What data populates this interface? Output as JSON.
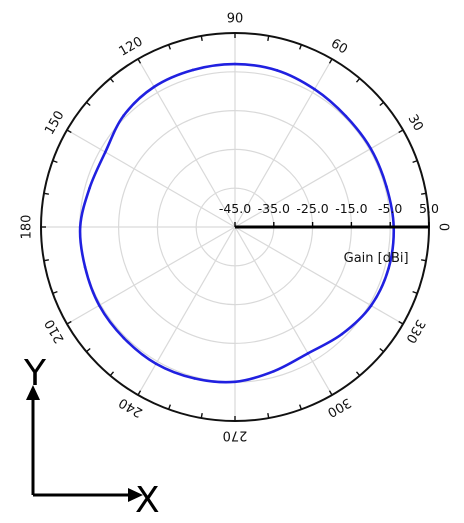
{
  "chart_data": {
    "type": "polar-line",
    "title": "",
    "angle_unit": "deg",
    "angular_ticks": [
      "0",
      "30",
      "60",
      "90",
      "120",
      "150",
      "180",
      "210",
      "240",
      "270",
      "300",
      "330"
    ],
    "angular_tick_values": [
      0,
      30,
      60,
      90,
      120,
      150,
      180,
      210,
      240,
      270,
      300,
      330
    ],
    "radial_ticks": [
      "-45.0",
      "-35.0",
      "-25.0",
      "-15.0",
      "-5.0",
      "5.0"
    ],
    "radial_tick_values": [
      -45,
      -35,
      -25,
      -15,
      -5,
      5
    ],
    "radial_range": [
      -45,
      5
    ],
    "radial_label": "Gain [dBi]",
    "grid": true,
    "series": [
      {
        "name": "",
        "color": "#2020e0",
        "theta": [
          0,
          15,
          30,
          45,
          60,
          75,
          90,
          105,
          120,
          135,
          150,
          165,
          180,
          195,
          210,
          225,
          240,
          255,
          270,
          285,
          300,
          315,
          330,
          345
        ],
        "values": [
          -4.1,
          -4.6,
          -4.6,
          -4.6,
          -4.0,
          -3.2,
          -3.0,
          -3.1,
          -3.3,
          -4.4,
          -6.4,
          -6.2,
          -5.1,
          -5.0,
          -4.6,
          -4.5,
          -4.3,
          -4.6,
          -5.1,
          -6.5,
          -7.4,
          -6.0,
          -4.5,
          -4.0
        ]
      }
    ]
  },
  "frame_axes": {
    "y_label": "Y",
    "x_label": "X"
  }
}
